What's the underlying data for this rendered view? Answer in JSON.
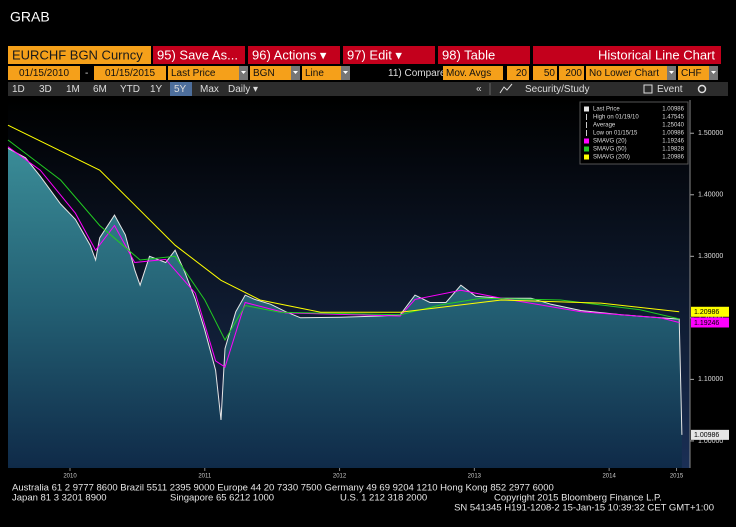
{
  "ui": {
    "screen_title": "GRAB",
    "command_bar": {
      "security": "EURCHF BGN Curncy",
      "buttons": [
        "95) Save As...",
        "96) Actions ▾",
        "97) Edit ▾",
        "98) Table"
      ],
      "view": "Historical Line Chart"
    },
    "settings_bar": [
      "01/15/2010",
      "-",
      "01/15/2015",
      "Last Price",
      "BGN",
      "Line",
      "11) Compare",
      "Mov. Avgs",
      "20",
      "50",
      "200",
      "No Lower Chart",
      "CHF"
    ],
    "range_bar": [
      "1D",
      "3D",
      "1M",
      "6M",
      "YTD",
      "1Y",
      "5Y",
      "Max",
      "Daily ▾"
    ],
    "tools": [
      "«",
      "Security/Study",
      "Event"
    ],
    "footer": [
      "Australia 61 2 9777 8600 Brazil 5511 2395 9000 Europe 44 20 7330 7500 Germany 49 69 9204 1210 Hong Kong 852 2977 6000",
      "Japan 81 3 3201 8900",
      "Singapore 65 6212 1000",
      "U.S. 1 212 318 2000",
      "Copyright 2015 Bloomberg Finance L.P.",
      "SN 541345 H191-1208-2 15-Jan-15 10:39:32 CET  GMT+1:00"
    ]
  },
  "chart_data": {
    "type": "line",
    "xlim": [
      2010.04,
      2015.1
    ],
    "ylim": [
      0.956,
      1.554
    ],
    "xticks": [
      {
        "value": 2010.5,
        "label": "2010"
      },
      {
        "value": 2011.5,
        "label": "2011"
      },
      {
        "value": 2012.5,
        "label": "2012"
      },
      {
        "value": 2013.5,
        "label": "2013"
      },
      {
        "value": 2014.5,
        "label": "2014"
      },
      {
        "value": 2015.0,
        "label": "2015"
      }
    ],
    "yticks": [
      {
        "value": 1.0,
        "label": "1.00000"
      },
      {
        "value": 1.1,
        "label": "1.10000"
      },
      {
        "value": 1.2,
        "label": "1.20000"
      },
      {
        "value": 1.3,
        "label": "1.30000"
      },
      {
        "value": 1.4,
        "label": "1.40000"
      },
      {
        "value": 1.5,
        "label": "1.50000"
      }
    ],
    "stats": [
      {
        "name": "High on 01/19/10",
        "value": 1.47545
      },
      {
        "name": "Average",
        "value": 1.2504,
        "value_label": "1.25040"
      },
      {
        "name": "Low on 01/15/15",
        "value": 1.00986
      }
    ],
    "series": [
      {
        "name": "Last Price",
        "color": "#e6e6e6",
        "area": true,
        "axis_tag": true,
        "last": 1.00986,
        "x": [
          2010.04,
          2010.17,
          2010.28,
          2010.43,
          2010.54,
          2010.65,
          2010.69,
          2010.72,
          2010.83,
          2010.91,
          2010.98,
          2011.02,
          2011.09,
          2011.21,
          2011.28,
          2011.35,
          2011.43,
          2011.5,
          2011.58,
          2011.62,
          2011.65,
          2011.73,
          2011.8,
          2011.87,
          2011.99,
          2012.1,
          2012.21,
          2012.51,
          2012.8,
          2012.95,
          2013.06,
          2013.17,
          2013.29,
          2013.4,
          2013.51,
          2013.7,
          2013.92,
          2014.07,
          2014.29,
          2014.59,
          2014.88,
          2015.02,
          2015.04
        ],
        "values": [
          1.47545,
          1.46,
          1.43,
          1.385,
          1.36,
          1.318,
          1.294,
          1.33,
          1.367,
          1.335,
          1.278,
          1.253,
          1.3,
          1.29,
          1.31,
          1.275,
          1.23,
          1.18,
          1.115,
          1.034,
          1.15,
          1.21,
          1.237,
          1.23,
          1.222,
          1.21,
          1.2,
          1.201,
          1.203,
          1.205,
          1.237,
          1.225,
          1.225,
          1.253,
          1.235,
          1.232,
          1.232,
          1.222,
          1.212,
          1.205,
          1.2,
          1.198,
          1.00986
        ]
      },
      {
        "name": "SMAVG (20)",
        "color": "#ff00ff",
        "axis_tag": true,
        "last": 1.19246,
        "x": [
          2010.04,
          2010.28,
          2010.54,
          2010.69,
          2010.83,
          2010.98,
          2011.21,
          2011.43,
          2011.58,
          2011.65,
          2011.8,
          2012.1,
          2012.95,
          2013.06,
          2013.4,
          2013.7,
          2014.29,
          2014.88,
          2015.02
        ],
        "values": [
          1.478,
          1.44,
          1.37,
          1.31,
          1.35,
          1.29,
          1.295,
          1.24,
          1.13,
          1.12,
          1.225,
          1.208,
          1.203,
          1.23,
          1.245,
          1.232,
          1.21,
          1.2,
          1.19246
        ]
      },
      {
        "name": "SMAVG (50)",
        "color": "#22cc22",
        "axis_tag": false,
        "last": 1.19828,
        "x": [
          2010.04,
          2010.43,
          2010.72,
          2011.02,
          2011.28,
          2011.5,
          2011.65,
          2011.8,
          2012.06,
          2012.95,
          2013.25,
          2013.55,
          2014.14,
          2014.73,
          2015.02
        ],
        "values": [
          1.489,
          1.424,
          1.35,
          1.294,
          1.3,
          1.229,
          1.164,
          1.22,
          1.209,
          1.205,
          1.221,
          1.232,
          1.229,
          1.213,
          1.19828
        ]
      },
      {
        "name": "SMAVG (200)",
        "color": "#ffff00",
        "axis_tag": true,
        "last": 1.20986,
        "x": [
          2010.04,
          2010.72,
          2011.28,
          2011.62,
          2011.91,
          2012.36,
          2012.95,
          2013.7,
          2014.44,
          2015.02
        ],
        "values": [
          1.513,
          1.44,
          1.318,
          1.261,
          1.229,
          1.209,
          1.209,
          1.229,
          1.224,
          1.20986
        ]
      }
    ]
  }
}
